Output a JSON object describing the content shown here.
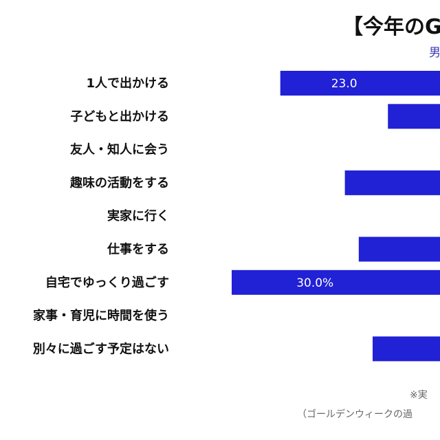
{
  "title": "【今年のG",
  "subtitle": "男",
  "notes": [
    "※実",
    "（ゴールデンウィークの過"
  ],
  "colors": {
    "bar": "#2121d6",
    "title": "#111111",
    "subtitle": "#3b3bb8"
  },
  "chart_data": {
    "type": "bar",
    "orientation": "horizontal",
    "categories": [
      "1人で出かける",
      "子どもと出かける",
      "友人・知人に会う",
      "趣味の活動をする",
      "実家に行く",
      "仕事をする",
      "自宅でゆっくり過ごす",
      "家事・育児に時間を使う",
      "別々に過ごす予定はない"
    ],
    "values": [
      23.0,
      7.5,
      null,
      13.7,
      null,
      11.7,
      30.0,
      null,
      9.7
    ],
    "data_labels": [
      "23.0",
      "",
      "",
      "",
      "",
      "",
      "30.0%",
      "",
      ""
    ],
    "unit": "%",
    "title": "【今年のG",
    "xlabel": "",
    "ylabel": "",
    "grid": false,
    "legend": "none"
  }
}
